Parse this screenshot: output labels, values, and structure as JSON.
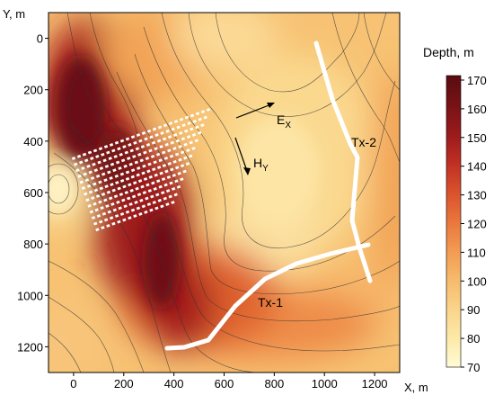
{
  "axes": {
    "x_label": "X, m",
    "y_label": "Y, m",
    "x_ticks": [
      "0",
      "200",
      "400",
      "600",
      "800",
      "1000",
      "1200"
    ],
    "y_ticks": [
      "0",
      "200",
      "400",
      "600",
      "800",
      "1000",
      "1200"
    ],
    "x_range": [
      -100,
      1300
    ],
    "y_range": [
      1300,
      -100
    ],
    "y_direction": "down"
  },
  "colorbar": {
    "title": "Depth, m",
    "ticks": [
      "170",
      "160",
      "150",
      "140",
      "130",
      "120",
      "110",
      "100",
      "90",
      "80",
      "70"
    ],
    "range": [
      70,
      170
    ],
    "colors": [
      "#fffbd6",
      "#fde9a8",
      "#fad48a",
      "#f6ba6c",
      "#f29a52",
      "#e9763c",
      "#d9512d",
      "#bf2f23",
      "#9a1a1c",
      "#761216",
      "#5a0c10"
    ]
  },
  "annotations": {
    "ex_label": "E",
    "ex_sub": "X",
    "hy_label": "H",
    "hy_sub": "Y",
    "tx1_label": "Tx-1",
    "tx2_label": "Tx-2"
  },
  "colors": {
    "transmitter_line": "#ffffff",
    "receiver_points": "#ffffff",
    "contour_line": "#333333",
    "arrow": "#000000"
  }
}
